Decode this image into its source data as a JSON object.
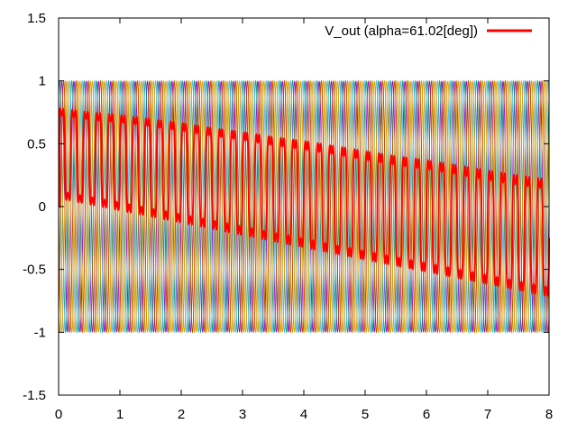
{
  "chart_data": {
    "type": "line",
    "title": "",
    "xlabel": "",
    "ylabel": "",
    "xlim": [
      0,
      8
    ],
    "ylim": [
      -1.5,
      1.5
    ],
    "xticks": [
      0,
      1,
      2,
      3,
      4,
      5,
      6,
      7,
      8
    ],
    "yticks": [
      -1.5,
      -1,
      -0.5,
      0,
      0.5,
      1,
      1.5
    ],
    "xtick_labels": [
      "0",
      "1",
      "2",
      "3",
      "4",
      "5",
      "6",
      "7",
      "8"
    ],
    "ytick_labels": [
      "-1.5",
      "-1",
      "-0.5",
      "0",
      "0.5",
      "1",
      "1.5"
    ],
    "grid": false,
    "legend_position": "top-right",
    "background_carriers": {
      "amplitude": 1,
      "cycles_over_range": 40,
      "phases_deg": [
        0,
        60,
        120,
        180,
        240,
        300
      ],
      "colors": [
        "#9400d3",
        "#009e73",
        "#56b4e9",
        "#e69f00",
        "#c8a000",
        "#c04000"
      ]
    },
    "series": [
      {
        "name": "V_out (alpha=61.02[deg])",
        "color": "#ff0000",
        "x": [
          0,
          0.5,
          1,
          1.5,
          2,
          2.5,
          3,
          3.5,
          4,
          4.5,
          5,
          5.5,
          6,
          6.5,
          7,
          7.5,
          8
        ],
        "envelope_upper": [
          0.85,
          0.82,
          0.8,
          0.77,
          0.74,
          0.7,
          0.67,
          0.63,
          0.6,
          0.56,
          0.52,
          0.48,
          0.45,
          0.41,
          0.37,
          0.33,
          0.3
        ],
        "envelope_lower": [
          0.0,
          -0.05,
          -0.1,
          -0.15,
          -0.2,
          -0.25,
          -0.3,
          -0.35,
          -0.4,
          -0.45,
          -0.5,
          -0.55,
          -0.6,
          -0.65,
          -0.7,
          -0.75,
          -0.8
        ],
        "oscillation_cycles_over_range": 40
      }
    ]
  }
}
